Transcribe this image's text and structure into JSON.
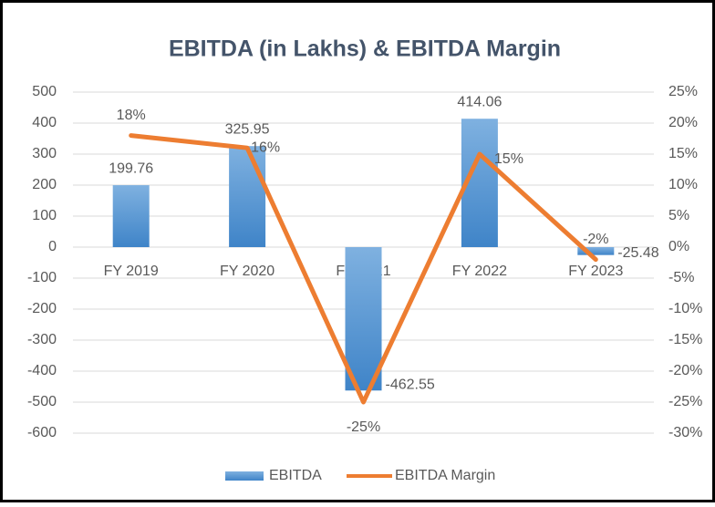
{
  "chart_data": {
    "type": "bar-line",
    "title": "EBITDA (in Lakhs) & EBITDA Margin",
    "categories": [
      "FY 2019",
      "FY 2020",
      "FY 2021",
      "FY 2022",
      "FY 2023"
    ],
    "series": [
      {
        "name": "EBITDA",
        "type": "bar",
        "color": "#5b9bd5",
        "values": [
          199.76,
          325.95,
          -462.55,
          414.06,
          -25.48
        ]
      },
      {
        "name": "EBITDA Margin",
        "type": "line",
        "axis": "y2",
        "color": "#ed7d31",
        "values": [
          18,
          16,
          -25,
          15,
          -2
        ],
        "value_labels": [
          "18%",
          "16%",
          "-25%",
          "15%",
          "-2%"
        ]
      }
    ],
    "ylim": [
      -600,
      500
    ],
    "yticks": [
      500,
      400,
      300,
      200,
      100,
      0,
      -100,
      -200,
      -300,
      -400,
      -500,
      -600
    ],
    "y2lim": [
      -30,
      25
    ],
    "y2ticks": [
      {
        "value": 25,
        "label": "25%"
      },
      {
        "value": 20,
        "label": "20%"
      },
      {
        "value": 15,
        "label": "15%"
      },
      {
        "value": 10,
        "label": "10%"
      },
      {
        "value": 5,
        "label": "5%"
      },
      {
        "value": 0,
        "label": "0%"
      },
      {
        "value": -5,
        "label": "-5%"
      },
      {
        "value": -10,
        "label": "-10%"
      },
      {
        "value": -15,
        "label": "-15%"
      },
      {
        "value": -20,
        "label": "-20%"
      },
      {
        "value": -25,
        "label": "-25%"
      },
      {
        "value": -30,
        "label": "-30%"
      }
    ],
    "grid": true,
    "legend": "bottom"
  }
}
